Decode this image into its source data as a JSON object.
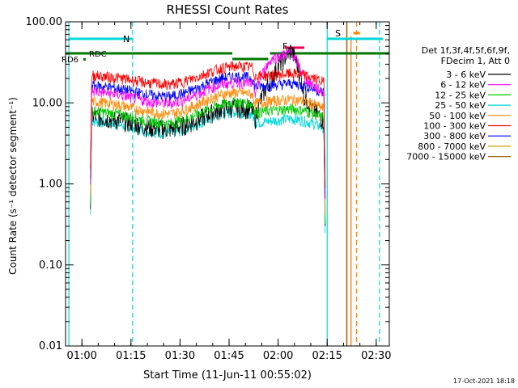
{
  "chart_data": {
    "type": "line",
    "title": "RHESSI Count Rates",
    "xlabel": "Start Time (11-Jun-11 00:55:02)",
    "ylabel": "Count Rate (s⁻¹ detector segment⁻¹)",
    "y_scale": "log",
    "ylim": [
      0.01,
      100
    ],
    "xlim_minutes": [
      55,
      154
    ],
    "x_ticks": [
      {
        "label": "01:00",
        "minutes": 60
      },
      {
        "label": "01:15",
        "minutes": 75
      },
      {
        "label": "01:30",
        "minutes": 90
      },
      {
        "label": "01:45",
        "minutes": 105
      },
      {
        "label": "02:00",
        "minutes": 120
      },
      {
        "label": "02:15",
        "minutes": 135
      },
      {
        "label": "02:30",
        "minutes": 150
      }
    ],
    "y_ticks": [
      "100.00",
      "10.00",
      "1.00",
      "0.10",
      "0.01"
    ],
    "y_tick_values": [
      100,
      10,
      1,
      0.1,
      0.01
    ],
    "legend": {
      "header": [
        "Det 1f,3f,4f,5f,6f,9f,",
        "FDecim 1, Att 0"
      ],
      "position": "right"
    },
    "series": [
      {
        "name": "3 - 6 keV",
        "color": "#000000",
        "values": [
          7.0,
          6.5,
          6.2,
          5.8,
          5.2,
          4.9,
          4.8,
          5.3,
          6.1,
          7.4,
          8.6,
          9.0,
          8.4,
          6.4,
          20.0,
          45.0,
          12.0,
          8.0,
          6.0
        ]
      },
      {
        "name": "6 - 12 keV",
        "color": "#ff00ff",
        "values": [
          14.0,
          13.3,
          12.7,
          11.6,
          10.6,
          10.0,
          9.8,
          10.8,
          12.5,
          15.0,
          17.0,
          18.0,
          17.2,
          13.2,
          35.0,
          42.0,
          20.0,
          16.0,
          13.0
        ]
      },
      {
        "name": "12 - 25 keV",
        "color": "#00cc00",
        "values": [
          8.0,
          7.6,
          7.3,
          6.7,
          6.1,
          5.8,
          5.6,
          6.2,
          7.2,
          8.5,
          9.7,
          10.3,
          9.8,
          7.6,
          8.0,
          8.5,
          8.0,
          7.3,
          6.5
        ]
      },
      {
        "name": "25 - 50 keV",
        "color": "#00d8d8",
        "values": [
          6.0,
          5.7,
          5.4,
          5.0,
          4.6,
          4.3,
          4.2,
          4.6,
          5.4,
          6.4,
          7.3,
          7.7,
          7.4,
          5.7,
          6.0,
          6.4,
          6.0,
          5.5,
          4.9
        ]
      },
      {
        "name": "50 - 100 keV",
        "color": "#ff8800",
        "values": [
          10.5,
          10.0,
          9.5,
          8.7,
          8.0,
          7.5,
          7.3,
          8.1,
          9.4,
          11.2,
          12.8,
          13.5,
          12.9,
          9.9,
          10.5,
          11.1,
          10.5,
          9.5,
          8.5
        ]
      },
      {
        "name": "100 - 300 keV",
        "color": "#ff0000",
        "values": [
          22.0,
          21.2,
          20.4,
          19.2,
          18.0,
          17.2,
          16.8,
          18.2,
          20.6,
          24.0,
          27.0,
          28.5,
          27.5,
          21.5,
          22.0,
          23.0,
          22.0,
          20.0,
          18.0
        ]
      },
      {
        "name": "300 - 800 keV",
        "color": "#0000ff",
        "values": [
          16.5,
          15.8,
          15.1,
          14.0,
          12.9,
          12.2,
          12.0,
          13.1,
          15.0,
          17.8,
          20.2,
          21.3,
          20.4,
          15.9,
          16.5,
          17.4,
          16.5,
          14.9,
          13.4
        ]
      },
      {
        "name": "800 - 7000 keV",
        "color": "#cca000",
        "values": []
      },
      {
        "name": "7000 - 15000 keV",
        "color": "#996600",
        "values": []
      }
    ],
    "sample_minutes": [
      63,
      67,
      71,
      75,
      79,
      83,
      87,
      91,
      95,
      99,
      103,
      107,
      112,
      113,
      118,
      124,
      128,
      131,
      134
    ],
    "annotations": [
      {
        "text": "N",
        "color": "#00d8d8"
      },
      {
        "text": "RD6",
        "color": "#007700"
      },
      {
        "text": "RDC",
        "color": "#007700"
      },
      {
        "text": "F",
        "color": "#cc0055"
      },
      {
        "text": "S",
        "color": "#ff8800"
      }
    ],
    "footer_date": "17-Oct-2021 18:18"
  }
}
